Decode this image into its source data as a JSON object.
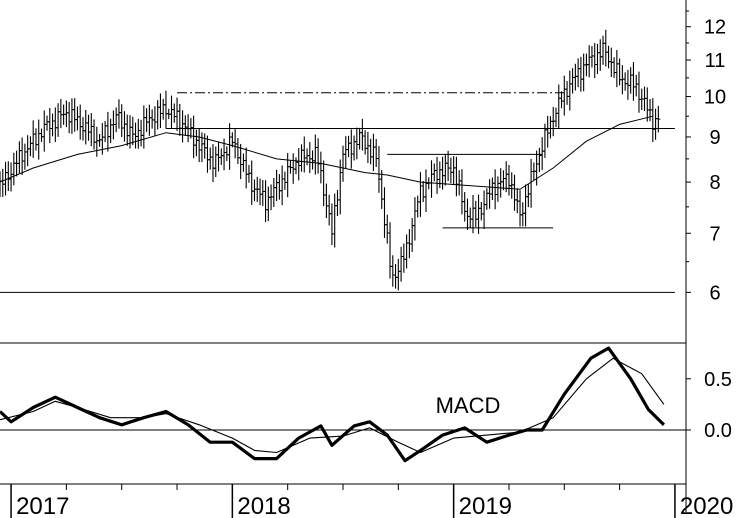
{
  "chart_data": [
    {
      "type": "ohlc",
      "scale": "log",
      "ylim": [
        5.7,
        12.6
      ],
      "yticks": [
        {
          "value": 6,
          "label": "6"
        },
        {
          "value": 7,
          "label": "7"
        },
        {
          "value": 8,
          "label": "8"
        },
        {
          "value": 9,
          "label": "9"
        },
        {
          "value": 10,
          "label": "10"
        },
        {
          "value": 11,
          "label": "11"
        },
        {
          "value": 12,
          "label": "12"
        }
      ],
      "horizontal_lines": [
        {
          "y": 9.2,
          "x_from": 2017.7,
          "x_to": 2020.0,
          "style": "solid"
        },
        {
          "y": 6.0,
          "x_from": 2016.9,
          "x_to": 2020.0,
          "style": "solid"
        },
        {
          "y": 8.6,
          "x_from": 2018.7,
          "x_to": 2019.4,
          "style": "solid"
        },
        {
          "y": 7.1,
          "x_from": 2018.95,
          "x_to": 2019.45,
          "style": "solid"
        },
        {
          "y": 10.1,
          "x_from": 2017.75,
          "x_to": 2019.5,
          "style": "dashdot"
        }
      ],
      "price_close": [
        {
          "x": 2016.95,
          "y": 7.9
        },
        {
          "x": 2017.05,
          "y": 8.6
        },
        {
          "x": 2017.15,
          "y": 9.2
        },
        {
          "x": 2017.25,
          "y": 9.6
        },
        {
          "x": 2017.32,
          "y": 9.3
        },
        {
          "x": 2017.4,
          "y": 8.9
        },
        {
          "x": 2017.48,
          "y": 9.5
        },
        {
          "x": 2017.55,
          "y": 9.0
        },
        {
          "x": 2017.62,
          "y": 9.4
        },
        {
          "x": 2017.7,
          "y": 9.7
        },
        {
          "x": 2017.78,
          "y": 9.3
        },
        {
          "x": 2017.85,
          "y": 8.8
        },
        {
          "x": 2017.92,
          "y": 8.4
        },
        {
          "x": 2018.0,
          "y": 8.9
        },
        {
          "x": 2018.08,
          "y": 8.0
        },
        {
          "x": 2018.15,
          "y": 7.6
        },
        {
          "x": 2018.22,
          "y": 8.0
        },
        {
          "x": 2018.3,
          "y": 8.5
        },
        {
          "x": 2018.38,
          "y": 8.6
        },
        {
          "x": 2018.45,
          "y": 7.0
        },
        {
          "x": 2018.5,
          "y": 8.6
        },
        {
          "x": 2018.58,
          "y": 9.0
        },
        {
          "x": 2018.65,
          "y": 8.5
        },
        {
          "x": 2018.72,
          "y": 6.2
        },
        {
          "x": 2018.78,
          "y": 6.6
        },
        {
          "x": 2018.85,
          "y": 7.8
        },
        {
          "x": 2018.92,
          "y": 8.2
        },
        {
          "x": 2019.0,
          "y": 8.3
        },
        {
          "x": 2019.05,
          "y": 7.4
        },
        {
          "x": 2019.1,
          "y": 7.3
        },
        {
          "x": 2019.18,
          "y": 7.9
        },
        {
          "x": 2019.25,
          "y": 8.1
        },
        {
          "x": 2019.3,
          "y": 7.3
        },
        {
          "x": 2019.38,
          "y": 8.5
        },
        {
          "x": 2019.45,
          "y": 9.5
        },
        {
          "x": 2019.52,
          "y": 10.3
        },
        {
          "x": 2019.6,
          "y": 10.9
        },
        {
          "x": 2019.68,
          "y": 11.3
        },
        {
          "x": 2019.75,
          "y": 10.5
        },
        {
          "x": 2019.82,
          "y": 10.3
        },
        {
          "x": 2019.9,
          "y": 9.4
        },
        {
          "x": 2019.93,
          "y": 9.4
        }
      ],
      "moving_average": [
        {
          "x": 2016.95,
          "y": 8.0
        },
        {
          "x": 2017.1,
          "y": 8.3
        },
        {
          "x": 2017.3,
          "y": 8.6
        },
        {
          "x": 2017.5,
          "y": 8.8
        },
        {
          "x": 2017.7,
          "y": 9.1
        },
        {
          "x": 2017.85,
          "y": 9.0
        },
        {
          "x": 2018.0,
          "y": 8.8
        },
        {
          "x": 2018.2,
          "y": 8.5
        },
        {
          "x": 2018.4,
          "y": 8.4
        },
        {
          "x": 2018.6,
          "y": 8.2
        },
        {
          "x": 2018.7,
          "y": 8.15
        },
        {
          "x": 2018.85,
          "y": 8.0
        },
        {
          "x": 2019.0,
          "y": 7.95
        },
        {
          "x": 2019.15,
          "y": 7.9
        },
        {
          "x": 2019.3,
          "y": 7.85
        },
        {
          "x": 2019.45,
          "y": 8.3
        },
        {
          "x": 2019.6,
          "y": 8.9
        },
        {
          "x": 2019.75,
          "y": 9.3
        },
        {
          "x": 2019.9,
          "y": 9.5
        }
      ]
    },
    {
      "type": "line",
      "annotation": "MACD",
      "ylim": [
        -0.45,
        0.85
      ],
      "yticks": [
        {
          "value": 0.5,
          "label": "0.5"
        },
        {
          "value": 0.0,
          "label": "0.0"
        }
      ],
      "zero_line": true,
      "series": [
        {
          "values": [
            {
              "x": 2016.95,
              "y": 0.18
            },
            {
              "x": 2017.0,
              "y": 0.08
            },
            {
              "x": 2017.1,
              "y": 0.22
            },
            {
              "x": 2017.2,
              "y": 0.32
            },
            {
              "x": 2017.3,
              "y": 0.22
            },
            {
              "x": 2017.4,
              "y": 0.12
            },
            {
              "x": 2017.5,
              "y": 0.05
            },
            {
              "x": 2017.6,
              "y": 0.12
            },
            {
              "x": 2017.7,
              "y": 0.18
            },
            {
              "x": 2017.8,
              "y": 0.05
            },
            {
              "x": 2017.9,
              "y": -0.12
            },
            {
              "x": 2018.0,
              "y": -0.12
            },
            {
              "x": 2018.1,
              "y": -0.28
            },
            {
              "x": 2018.2,
              "y": -0.28
            },
            {
              "x": 2018.3,
              "y": -0.08
            },
            {
              "x": 2018.4,
              "y": 0.04
            },
            {
              "x": 2018.45,
              "y": -0.15
            },
            {
              "x": 2018.55,
              "y": 0.04
            },
            {
              "x": 2018.62,
              "y": 0.08
            },
            {
              "x": 2018.7,
              "y": -0.05
            },
            {
              "x": 2018.78,
              "y": -0.3
            },
            {
              "x": 2018.85,
              "y": -0.2
            },
            {
              "x": 2018.95,
              "y": -0.05
            },
            {
              "x": 2019.05,
              "y": 0.02
            },
            {
              "x": 2019.15,
              "y": -0.12
            },
            {
              "x": 2019.25,
              "y": -0.05
            },
            {
              "x": 2019.33,
              "y": 0.0
            },
            {
              "x": 2019.4,
              "y": 0.0
            },
            {
              "x": 2019.5,
              "y": 0.35
            },
            {
              "x": 2019.62,
              "y": 0.7
            },
            {
              "x": 2019.7,
              "y": 0.8
            },
            {
              "x": 2019.8,
              "y": 0.5
            },
            {
              "x": 2019.88,
              "y": 0.2
            },
            {
              "x": 2019.95,
              "y": 0.05
            }
          ]
        },
        {
          "values": [
            {
              "x": 2016.95,
              "y": 0.1
            },
            {
              "x": 2017.1,
              "y": 0.18
            },
            {
              "x": 2017.2,
              "y": 0.28
            },
            {
              "x": 2017.3,
              "y": 0.22
            },
            {
              "x": 2017.45,
              "y": 0.12
            },
            {
              "x": 2017.6,
              "y": 0.12
            },
            {
              "x": 2017.7,
              "y": 0.16
            },
            {
              "x": 2017.85,
              "y": 0.05
            },
            {
              "x": 2018.0,
              "y": -0.08
            },
            {
              "x": 2018.1,
              "y": -0.2
            },
            {
              "x": 2018.2,
              "y": -0.22
            },
            {
              "x": 2018.35,
              "y": -0.08
            },
            {
              "x": 2018.5,
              "y": -0.06
            },
            {
              "x": 2018.62,
              "y": 0.02
            },
            {
              "x": 2018.75,
              "y": -0.12
            },
            {
              "x": 2018.85,
              "y": -0.22
            },
            {
              "x": 2019.0,
              "y": -0.08
            },
            {
              "x": 2019.15,
              "y": -0.05
            },
            {
              "x": 2019.3,
              "y": -0.02
            },
            {
              "x": 2019.45,
              "y": 0.12
            },
            {
              "x": 2019.6,
              "y": 0.5
            },
            {
              "x": 2019.72,
              "y": 0.7
            },
            {
              "x": 2019.85,
              "y": 0.55
            },
            {
              "x": 2019.95,
              "y": 0.25
            }
          ]
        }
      ]
    }
  ],
  "x_axis": {
    "ticks": [
      {
        "value": 2017.0,
        "label": "2017"
      },
      {
        "value": 2018.0,
        "label": "2018"
      },
      {
        "value": 2019.0,
        "label": "2019"
      },
      {
        "value": 2020.0,
        "label": "2020"
      }
    ]
  }
}
